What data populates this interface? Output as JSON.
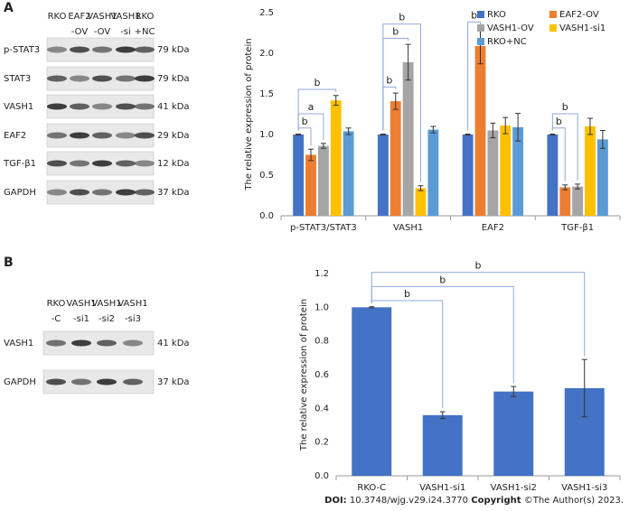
{
  "panels": [
    "A",
    "B"
  ],
  "blots": [
    {
      "lanes": [
        [
          "RKO"
        ],
        [
          "EAF2",
          "-OV"
        ],
        [
          "VASH1",
          "-OV"
        ],
        [
          "VASH1",
          "-si"
        ],
        [
          "RKO",
          "+NC"
        ]
      ],
      "rows": [
        {
          "protein": "p-STAT3",
          "size": "79 kDa"
        },
        {
          "protein": "STAT3",
          "size": "79 kDa"
        },
        {
          "protein": "VASH1",
          "size": "41 kDa"
        },
        {
          "protein": "EAF2",
          "size": "29 kDa"
        },
        {
          "protein": "TGF-β1",
          "size": "12 kDa"
        },
        {
          "protein": "GAPDH",
          "size": "37 kDa"
        }
      ]
    },
    {
      "lanes": [
        [
          "RKO",
          "-C"
        ],
        [
          "VASH1",
          "-si1"
        ],
        [
          "VASH1",
          "-si2"
        ],
        [
          "VASH1",
          "-si3"
        ]
      ],
      "rows": [
        {
          "protein": "VASH1",
          "size": "41 kDa"
        },
        {
          "protein": "GAPDH",
          "size": "37 kDa"
        }
      ]
    }
  ],
  "chart_data": [
    {
      "type": "bar",
      "y_label": "The relative expression of protein",
      "categories": [
        "p-STAT3/STAT3",
        "VASH1",
        "EAF2",
        "TGF-β1"
      ],
      "series": [
        {
          "name": "RKO",
          "color": "#4472c4",
          "values": [
            1.0,
            1.0,
            1.0,
            1.0
          ],
          "errors": [
            0.005,
            0.005,
            0.005,
            0.005
          ]
        },
        {
          "name": "EAF2-OV",
          "color": "#ed7d31",
          "values": [
            0.75,
            1.41,
            2.09,
            0.35
          ],
          "errors": [
            0.07,
            0.1,
            0.22,
            0.03
          ]
        },
        {
          "name": "VASH1-OV",
          "color": "#a5a5a5",
          "values": [
            0.86,
            1.89,
            1.05,
            0.36
          ],
          "errors": [
            0.03,
            0.22,
            0.09,
            0.03
          ]
        },
        {
          "name": "VASH1-si1",
          "color": "#ffc000",
          "values": [
            1.42,
            0.34,
            1.11,
            1.1
          ],
          "errors": [
            0.06,
            0.03,
            0.1,
            0.1
          ]
        },
        {
          "name": "RKO+NC",
          "color": "#5b9bd5",
          "values": [
            1.04,
            1.06,
            1.09,
            0.94
          ],
          "errors": [
            0.04,
            0.04,
            0.17,
            0.11
          ]
        }
      ],
      "ylim": [
        0,
        2.5
      ],
      "yticks": [
        {
          "value": 0,
          "label": "0.0"
        },
        0.5,
        {
          "value": 1,
          "label": "1.0"
        },
        1.5,
        {
          "value": 2,
          "label": "2.0"
        },
        2.5
      ],
      "grid": false,
      "legend": "upper right",
      "significance": [
        {
          "label": "b",
          "category": 0,
          "bars": [
            0,
            1
          ]
        },
        {
          "label": "a",
          "category": 0,
          "bars": [
            0,
            2
          ]
        },
        {
          "label": "b",
          "category": 0,
          "bars": [
            0,
            3
          ]
        },
        {
          "label": "b",
          "category": 1,
          "bars": [
            0,
            1
          ]
        },
        {
          "label": "b",
          "category": 1,
          "bars": [
            0,
            2
          ]
        },
        {
          "label": "b",
          "category": 1,
          "bars": [
            0,
            3
          ]
        },
        {
          "label": "b",
          "category": 2,
          "bars": [
            0,
            1
          ]
        },
        {
          "label": "b",
          "category": 3,
          "bars": [
            0,
            1
          ]
        },
        {
          "label": "b",
          "category": 3,
          "bars": [
            0,
            2
          ]
        }
      ]
    },
    {
      "type": "bar",
      "y_label": "The relative expression of protein",
      "categories": [
        "RKO-C",
        "VASH1-si1",
        "VASH1-si2",
        "VASH1-si3"
      ],
      "values": [
        1.0,
        0.36,
        0.5,
        0.52
      ],
      "errors": [
        0.003,
        0.02,
        0.03,
        0.17
      ],
      "color": "#4472c4",
      "ylim": [
        0,
        1.2
      ],
      "yticks": [
        {
          "value": 0,
          "label": "0.0"
        },
        0.2,
        0.4,
        0.6,
        0.8,
        {
          "value": 1,
          "label": "1.0"
        },
        1.2
      ],
      "grid": false,
      "significance": [
        {
          "label": "b",
          "bars": [
            0,
            1
          ]
        },
        {
          "label": "b",
          "bars": [
            0,
            2
          ]
        },
        {
          "label": "b",
          "bars": [
            0,
            3
          ]
        }
      ]
    }
  ],
  "footer": {
    "doi_label": "DOI:",
    "doi": "10.3748/wjg.v29.i24.3770",
    "copyright_label": "Copyright",
    "copyright": "©The Author(s) 2023."
  }
}
